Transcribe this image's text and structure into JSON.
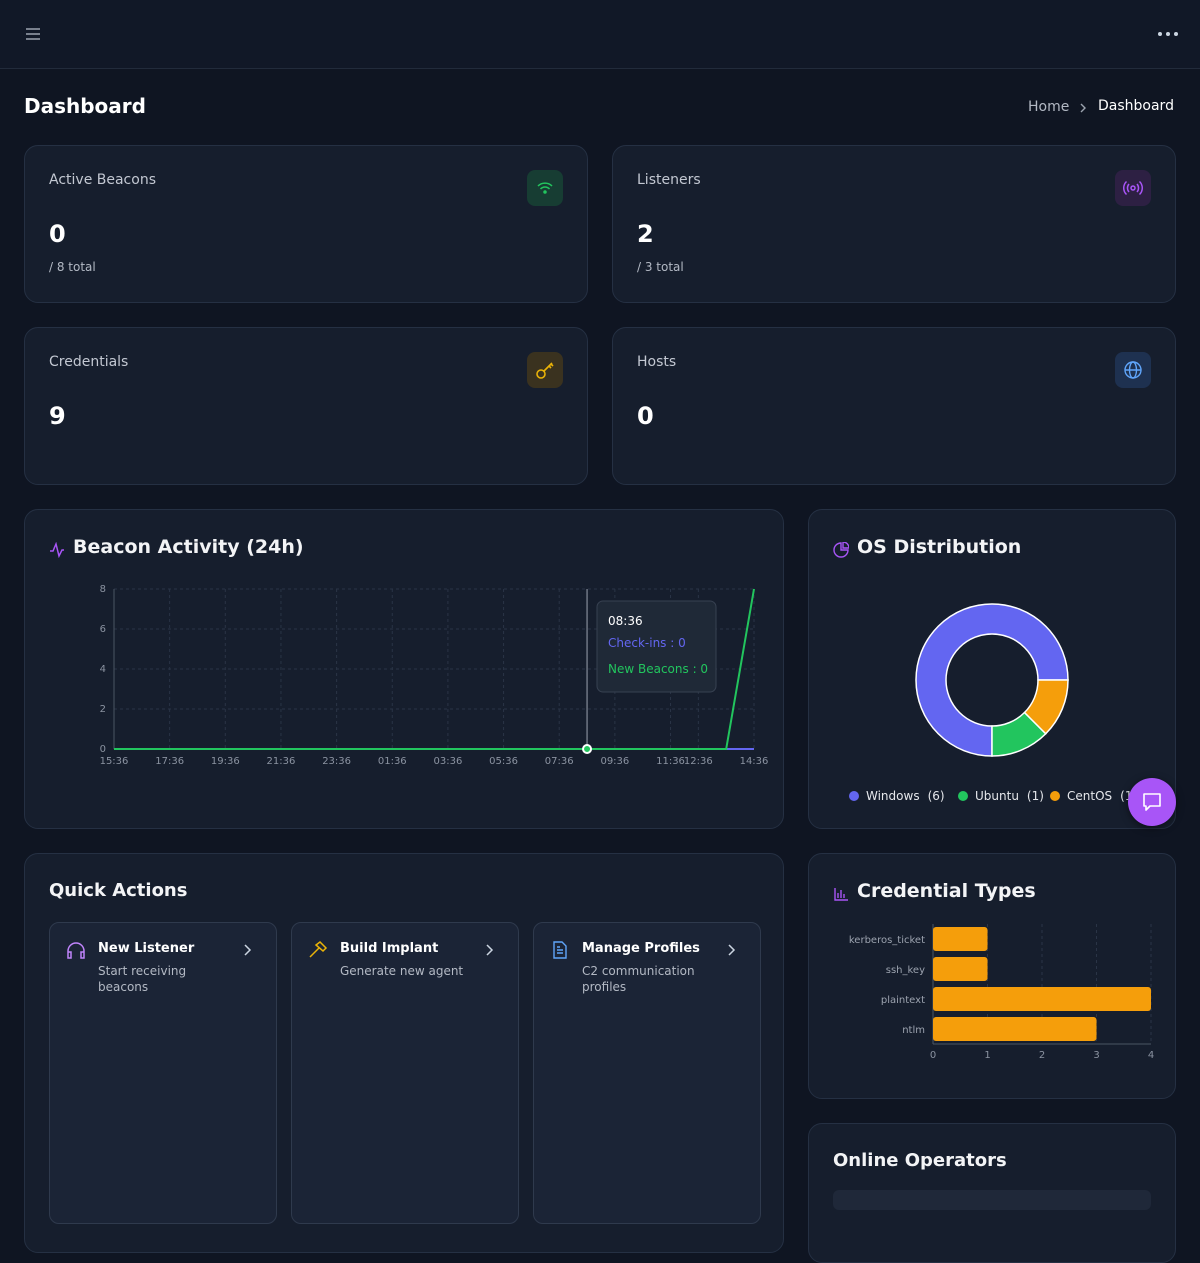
{
  "header": {
    "title": "Dashboard",
    "breadcrumb": [
      "Home",
      "Dashboard"
    ]
  },
  "stats": [
    {
      "label": "Active Beacons",
      "value": 0,
      "sub": "/ 8 total"
    },
    {
      "label": "Listeners",
      "value": 2,
      "sub": "/ 3 total"
    },
    {
      "label": "Credentials",
      "value": 9
    },
    {
      "label": "Hosts",
      "value": 0
    }
  ],
  "chart_data": [
    {
      "type": "line",
      "title": "Beacon Activity (24h)",
      "categories": [
        "15:36",
        null,
        "17:36",
        null,
        "19:36",
        null,
        "21:36",
        null,
        "23:36",
        null,
        "01:36",
        null,
        "03:36",
        null,
        "05:36",
        null,
        "07:36",
        null,
        "09:36",
        null,
        "11:36",
        "12:36",
        null,
        "14:36"
      ],
      "series": [
        {
          "name": "Check-ins",
          "color": "#6366f1",
          "values": [
            0,
            0,
            0,
            0,
            0,
            0,
            0,
            0,
            0,
            0,
            0,
            0,
            0,
            0,
            0,
            0,
            0,
            0,
            0,
            0,
            0,
            0,
            0,
            0
          ]
        },
        {
          "name": "New Beacons",
          "color": "#22c55e",
          "values": [
            0,
            0,
            0,
            0,
            0,
            0,
            0,
            0,
            0,
            0,
            0,
            0,
            0,
            0,
            0,
            0,
            0,
            0,
            0,
            0,
            0,
            0,
            0,
            8
          ]
        }
      ],
      "ylim": [
        0,
        8
      ],
      "yticks": [
        0,
        2,
        4,
        6,
        8
      ],
      "grid": true,
      "tooltip": {
        "title": "08:36",
        "lines": [
          "Check-ins : 0",
          "New Beacons : 0"
        ]
      }
    },
    {
      "type": "pie",
      "title": "OS Distribution",
      "categories": [
        "Windows",
        "Ubuntu",
        "CentOS"
      ],
      "values": [
        6,
        1,
        1
      ],
      "value_labels": [
        "(6)",
        "(1)",
        "(1)"
      ],
      "colors": [
        "#6366f1",
        "#22c55e",
        "#f59e0b"
      ],
      "legend": "bottom"
    },
    {
      "type": "bar",
      "orientation": "horizontal",
      "title": "Credential Types",
      "categories": [
        "kerberos_ticket",
        "ssh_key",
        "plaintext",
        "ntlm"
      ],
      "values": [
        1,
        1,
        4,
        3
      ],
      "color": "#f59e0b",
      "xlim": [
        0,
        4
      ],
      "xticks": [
        0,
        1,
        2,
        3,
        4
      ],
      "grid": true
    }
  ],
  "quick_actions": {
    "title": "Quick Actions",
    "items": [
      {
        "title": "New Listener",
        "description": "Start receiving beacons"
      },
      {
        "title": "Build Implant",
        "description": "Generate new agent"
      },
      {
        "title": "Manage Profiles",
        "description": "C2 communication profiles"
      }
    ]
  },
  "operators": {
    "title": "Online Operators"
  }
}
